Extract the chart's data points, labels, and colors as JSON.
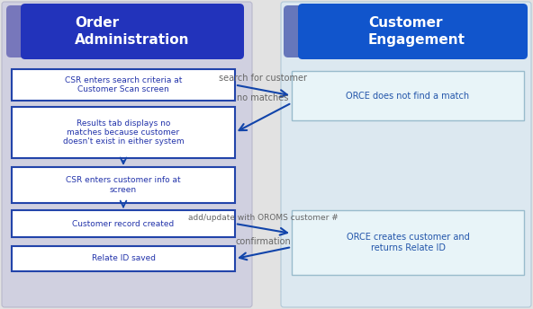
{
  "bg_color": "#e2e2e2",
  "left_panel_face": "#d0d0e0",
  "left_panel_edge": "#b8b8cc",
  "right_panel_face": "#dce8f0",
  "right_panel_edge": "#b0c8d8",
  "left_header_main": "#2233bb",
  "left_header_accent": "#7777bb",
  "right_header_main": "#1155cc",
  "right_header_accent": "#6677bb",
  "header_text": "#ffffff",
  "left_box_face": "#ffffff",
  "left_box_edge": "#2244aa",
  "right_box_face": "#e8f4f8",
  "right_box_edge": "#99bbcc",
  "arrow_color": "#1144aa",
  "arrow_label_color": "#666666",
  "box_text_color": "#2233aa",
  "right_box_text_color": "#2255aa",
  "left_title": "Order\nAdministration",
  "right_title": "Customer\nEngagement",
  "left_boxes": [
    "CSR enters search criteria at\nCustomer Scan screen",
    "Results tab displays no\nmatches because customer\ndoesn't exist in either system",
    "CSR enters customer info at\nscreen",
    "Customer record created",
    "Relate ID saved"
  ],
  "right_boxes": [
    "ORCE does not find a match",
    "ORCE creates customer and\nreturns Relate ID"
  ],
  "arrow_labels": [
    "search for customer",
    "no matches",
    "add/update with OROMS customer #",
    "confirmation"
  ]
}
